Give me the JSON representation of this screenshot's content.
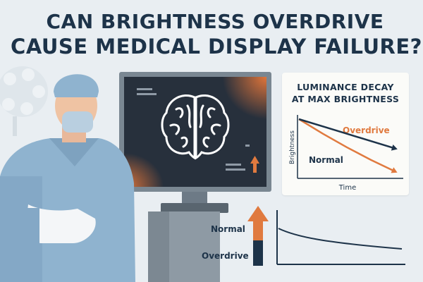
{
  "headline": {
    "line1": "CAN BRIGHTNESS OVERDRIVE",
    "line2": "CAUSE MEDICAL DISPLAY FAILURE?"
  },
  "chart_data": {
    "type": "line",
    "title_line1": "LUMINANCE DECAY",
    "title_line2": "AT MAX BRIGHTNESS",
    "xlabel": "Time",
    "ylabel": "Brightness",
    "series": [
      {
        "name": "Overdrive",
        "color": "#e07a3f",
        "values": [
          1.0,
          0.72,
          0.46,
          0.22,
          0.0
        ]
      },
      {
        "name": "Normal",
        "color": "#1d3349",
        "values": [
          1.0,
          0.86,
          0.72,
          0.58,
          0.44
        ]
      }
    ]
  },
  "bar_gauge": {
    "normal_label": "Normal",
    "overdrive_label": "Overdrive",
    "orange": "#e07a3f",
    "navy": "#1d3349"
  },
  "colors": {
    "background": "#e9eef2",
    "navy": "#1d3349",
    "orange": "#e07a3f",
    "scrubs": "#8fb3cf",
    "monitor_screen": "#27303c"
  },
  "icons": [
    "surgical-lamp-icon",
    "brain-icon",
    "up-arrow-icon"
  ]
}
